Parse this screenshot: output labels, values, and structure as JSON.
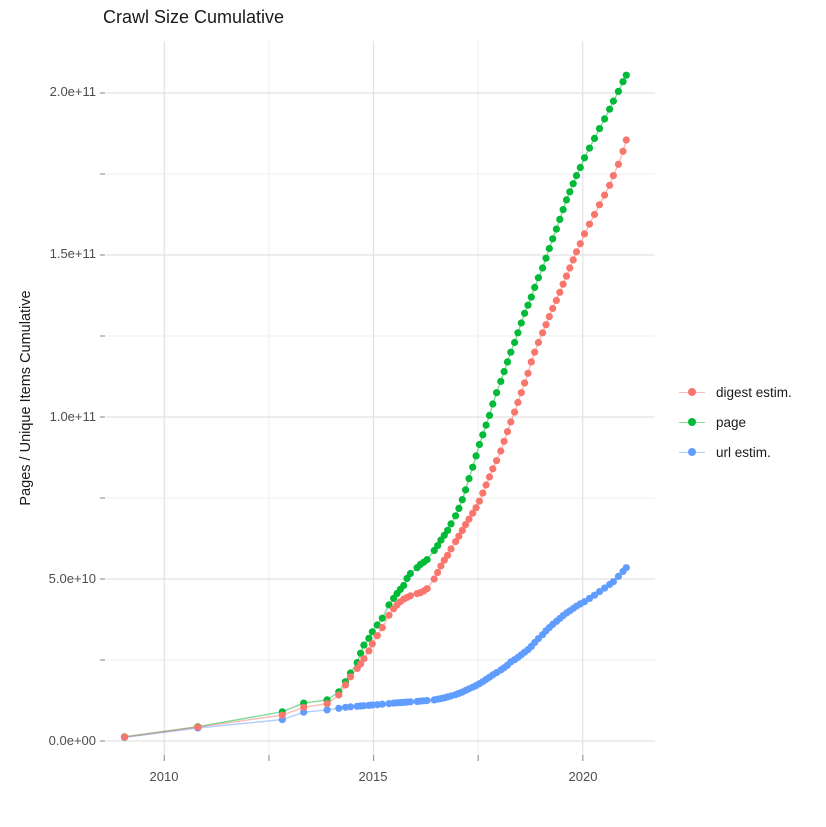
{
  "title": "Crawl Size Cumulative",
  "y_axis": {
    "label": "Pages / Unique Items Cumulative",
    "tick_labels": [
      "0.0e+00",
      "5.0e+10",
      "1.0e+11",
      "1.5e+11",
      "2.0e+11"
    ],
    "tick_values_e9": [
      0,
      50,
      100,
      150,
      200
    ],
    "minor_tick_values_e9": [
      25,
      75,
      125,
      175
    ]
  },
  "x_axis": {
    "tick_labels": [
      "2010",
      "2015",
      "2020"
    ],
    "tick_values": [
      2010,
      2015,
      2020
    ],
    "minor_tick_values": [
      2012.5,
      2017.5
    ]
  },
  "legend": {
    "items": [
      {
        "label": "digest estim.",
        "color": "#F8766D"
      },
      {
        "label": "page",
        "color": "#00BA38"
      },
      {
        "label": "url estim.",
        "color": "#619CFF"
      }
    ]
  },
  "colors": {
    "digest": "#F8766D",
    "page": "#00BA38",
    "url": "#619CFF",
    "grid_major": "#e2e2e2",
    "grid_minor": "#efefef",
    "tick_mark": "#999999",
    "axis_text": "#4d4d4d"
  },
  "chart_data": {
    "type": "line",
    "title": "Crawl Size Cumulative",
    "xlabel": "",
    "ylabel": "Pages / Unique Items Cumulative",
    "x_unit": "decimal year (crawl date)",
    "value_unit": "count, stored as billions (multiply by 1e9)",
    "xlim": [
      2008.6,
      2021.75
    ],
    "ylim_e9": [
      0,
      216
    ],
    "grid": true,
    "legend_position": "right",
    "x": [
      2009.05,
      2010.8,
      2012.82,
      2013.33,
      2013.89,
      2014.17,
      2014.33,
      2014.45,
      2014.61,
      2014.69,
      2014.77,
      2014.89,
      2014.97,
      2015.09,
      2015.21,
      2015.37,
      2015.48,
      2015.56,
      2015.64,
      2015.72,
      2015.8,
      2015.88,
      2016.04,
      2016.12,
      2016.2,
      2016.28,
      2016.45,
      2016.53,
      2016.61,
      2016.69,
      2016.77,
      2016.85,
      2016.96,
      2017.04,
      2017.12,
      2017.2,
      2017.28,
      2017.37,
      2017.45,
      2017.53,
      2017.61,
      2017.69,
      2017.77,
      2017.85,
      2017.94,
      2018.04,
      2018.12,
      2018.2,
      2018.28,
      2018.37,
      2018.45,
      2018.53,
      2018.61,
      2018.69,
      2018.77,
      2018.85,
      2018.94,
      2019.04,
      2019.12,
      2019.2,
      2019.28,
      2019.37,
      2019.45,
      2019.53,
      2019.61,
      2019.69,
      2019.77,
      2019.85,
      2019.94,
      2020.04,
      2020.16,
      2020.28,
      2020.4,
      2020.52,
      2020.64,
      2020.73,
      2020.85,
      2020.96,
      2021.04
    ],
    "series": [
      {
        "name": "digest estim.",
        "color": "#F8766D",
        "values_e9": [
          1.2,
          4.3,
          8.0,
          10.4,
          11.5,
          14.2,
          17.3,
          19.8,
          22.4,
          23.8,
          25.4,
          27.8,
          30.0,
          32.5,
          35.0,
          38.8,
          40.8,
          42.0,
          43.0,
          43.8,
          44.3,
          44.8,
          45.5,
          45.8,
          46.3,
          47.0,
          50.0,
          52.0,
          54.0,
          55.8,
          57.3,
          59.3,
          61.5,
          63.2,
          65.0,
          66.8,
          68.5,
          70.3,
          72.0,
          74.0,
          76.5,
          79.0,
          81.5,
          84.0,
          86.5,
          89.5,
          92.5,
          95.5,
          98.5,
          101.5,
          104.5,
          107.5,
          110.5,
          113.5,
          117.0,
          120.0,
          123.0,
          126.0,
          128.5,
          131.0,
          133.5,
          136.0,
          138.5,
          141.0,
          143.5,
          146.0,
          148.5,
          151.0,
          153.5,
          156.5,
          159.5,
          162.5,
          165.5,
          168.5,
          171.5,
          174.5,
          178.0,
          182.0,
          185.5
        ]
      },
      {
        "name": "page",
        "color": "#00BA38",
        "values_e9": [
          1.3,
          4.4,
          9.0,
          11.7,
          12.7,
          15.2,
          18.3,
          21.0,
          24.2,
          27.1,
          29.6,
          31.7,
          33.7,
          35.8,
          37.9,
          42.0,
          44.0,
          45.5,
          46.8,
          48.0,
          50.2,
          51.7,
          53.5,
          54.5,
          55.2,
          56.0,
          58.8,
          60.3,
          62.0,
          63.5,
          65.0,
          67.0,
          69.5,
          71.8,
          74.5,
          77.5,
          81.0,
          84.5,
          88.0,
          91.5,
          94.5,
          97.5,
          100.5,
          104.0,
          107.5,
          111.0,
          114.0,
          117.0,
          120.0,
          123.0,
          126.0,
          129.0,
          132.0,
          134.5,
          137.0,
          140.0,
          143.0,
          146.0,
          149.0,
          152.0,
          155.0,
          158.0,
          161.0,
          164.0,
          167.0,
          169.5,
          172.0,
          174.5,
          177.0,
          180.0,
          183.0,
          186.0,
          189.0,
          192.0,
          195.0,
          197.5,
          200.5,
          203.5,
          205.5
        ]
      },
      {
        "name": "url estim.",
        "color": "#619CFF",
        "values_e9": [
          1.1,
          4.0,
          6.6,
          8.9,
          9.6,
          10.1,
          10.4,
          10.55,
          10.7,
          10.8,
          10.9,
          11.0,
          11.1,
          11.2,
          11.35,
          11.55,
          11.7,
          11.8,
          11.85,
          11.9,
          12.0,
          12.1,
          12.2,
          12.3,
          12.4,
          12.5,
          12.7,
          12.9,
          13.1,
          13.3,
          13.6,
          13.9,
          14.3,
          14.7,
          15.1,
          15.6,
          16.1,
          16.6,
          17.1,
          17.7,
          18.3,
          19.0,
          19.7,
          20.4,
          21.1,
          21.9,
          22.6,
          23.4,
          24.4,
          25.1,
          25.8,
          26.6,
          27.4,
          28.2,
          29.2,
          30.4,
          31.6,
          32.8,
          34.0,
          35.0,
          36.0,
          36.9,
          37.8,
          38.7,
          39.5,
          40.2,
          40.9,
          41.6,
          42.3,
          43.0,
          44.0,
          45.0,
          46.1,
          47.2,
          48.3,
          49.2,
          50.8,
          52.3,
          53.5
        ]
      }
    ]
  }
}
